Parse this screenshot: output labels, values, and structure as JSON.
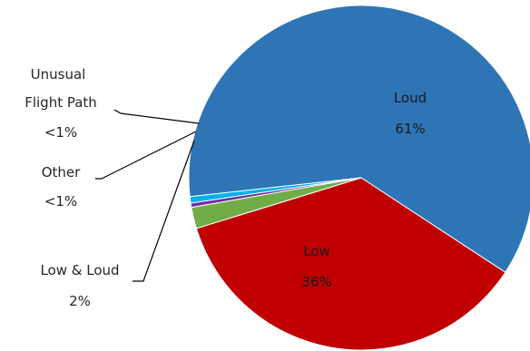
{
  "chart_data": {
    "type": "pie",
    "slices": [
      {
        "label": "Loud",
        "value": 61,
        "percent_label": "61%",
        "color": "#2e75b6"
      },
      {
        "label": "Low",
        "value": 36,
        "percent_label": "36%",
        "color": "#c00000"
      },
      {
        "label": "Low & Loud",
        "value": 2,
        "percent_label": "2%",
        "color": "#70ad47"
      },
      {
        "label": "Other",
        "value": 0.4,
        "percent_label": "<1%",
        "color": "#7030a0"
      },
      {
        "label": "Unusual Flight Path",
        "label_lines": [
          "Unusual",
          "Flight Path"
        ],
        "value": 0.6,
        "percent_label": "<1%",
        "color": "#00b0f0"
      }
    ],
    "title": "",
    "legend": "none"
  }
}
